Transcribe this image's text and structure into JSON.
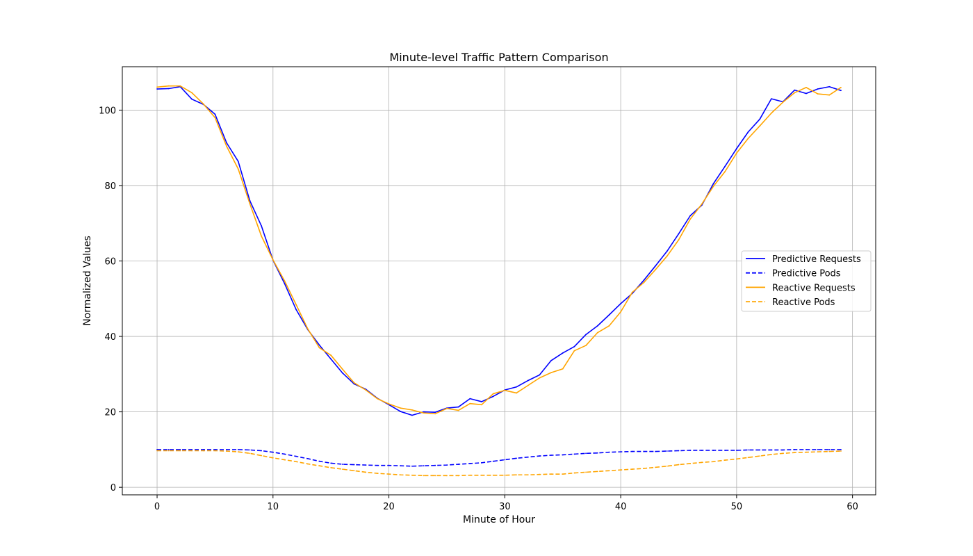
{
  "chart_data": {
    "type": "line",
    "title": "Minute-level Traffic Pattern Comparison",
    "xlabel": "Minute of Hour",
    "ylabel": "Normalized Values",
    "xlim": [
      -3,
      62
    ],
    "ylim": [
      -2,
      111.5
    ],
    "x_ticks": [
      0,
      10,
      20,
      30,
      40,
      50,
      60
    ],
    "y_ticks": [
      0,
      20,
      40,
      60,
      80,
      100
    ],
    "grid": true,
    "legend_position": "center-right",
    "x": [
      0,
      1,
      2,
      3,
      4,
      5,
      6,
      7,
      8,
      9,
      10,
      11,
      12,
      13,
      14,
      15,
      16,
      17,
      18,
      19,
      20,
      21,
      22,
      23,
      24,
      25,
      26,
      27,
      28,
      29,
      30,
      31,
      32,
      33,
      34,
      35,
      36,
      37,
      38,
      39,
      40,
      41,
      42,
      43,
      44,
      45,
      46,
      47,
      48,
      49,
      50,
      51,
      52,
      53,
      54,
      55,
      56,
      57,
      58,
      59
    ],
    "series": [
      {
        "name": "Predictive Requests",
        "color": "#0000ff",
        "dash": "solid",
        "values": [
          105.6,
          105.7,
          106.2,
          102.9,
          101.5,
          98.9,
          91.3,
          86.4,
          76.0,
          69.3,
          60.2,
          54.0,
          47.1,
          41.8,
          37.7,
          34.0,
          30.3,
          27.4,
          26.0,
          23.6,
          21.9,
          20.1,
          19.1,
          20.0,
          19.9,
          21.0,
          21.3,
          23.5,
          22.7,
          24.1,
          25.8,
          26.6,
          28.3,
          29.8,
          33.6,
          35.6,
          37.3,
          40.5,
          42.8,
          45.7,
          48.7,
          51.4,
          54.9,
          58.7,
          62.6,
          67.2,
          72.0,
          74.8,
          80.5,
          85.1,
          89.8,
          94.2,
          97.6,
          103.0,
          102.2,
          105.3,
          104.4,
          105.6,
          106.2,
          105.2
        ]
      },
      {
        "name": "Predictive Pods",
        "color": "#0000ff",
        "dash": "dashed",
        "values": [
          10.0,
          10.0,
          10.0,
          10.0,
          10.0,
          10.0,
          10.0,
          10.0,
          9.9,
          9.7,
          9.3,
          8.8,
          8.2,
          7.6,
          6.9,
          6.4,
          6.1,
          6.0,
          5.9,
          5.8,
          5.8,
          5.7,
          5.6,
          5.7,
          5.8,
          5.9,
          6.1,
          6.3,
          6.5,
          6.9,
          7.3,
          7.7,
          8.0,
          8.3,
          8.5,
          8.6,
          8.8,
          9.0,
          9.1,
          9.3,
          9.4,
          9.5,
          9.5,
          9.5,
          9.6,
          9.7,
          9.8,
          9.8,
          9.8,
          9.8,
          9.8,
          9.9,
          9.9,
          9.9,
          9.9,
          10.0,
          10.0,
          10.0,
          10.0,
          10.0
        ]
      },
      {
        "name": "Reactive Requests",
        "color": "#ffa500",
        "dash": "solid",
        "values": [
          106.1,
          106.4,
          106.4,
          104.6,
          101.6,
          98.0,
          90.4,
          84.4,
          75.2,
          66.6,
          60.3,
          54.7,
          48.4,
          42.0,
          37.0,
          35.0,
          31.3,
          27.7,
          25.8,
          23.5,
          22.1,
          21.0,
          20.5,
          19.7,
          19.5,
          20.9,
          20.4,
          22.2,
          21.9,
          24.8,
          25.7,
          25.0,
          27.0,
          29.0,
          30.4,
          31.4,
          36.2,
          37.6,
          41.0,
          42.8,
          46.5,
          51.7,
          54.3,
          57.7,
          61.3,
          65.6,
          71.1,
          75.1,
          79.8,
          83.7,
          88.6,
          92.5,
          95.8,
          99.2,
          102.1,
          104.6,
          106.0,
          104.3,
          104.0,
          106.0
        ]
      },
      {
        "name": "Reactive Pods",
        "color": "#ffa500",
        "dash": "dashed",
        "values": [
          9.7,
          9.7,
          9.7,
          9.7,
          9.7,
          9.7,
          9.6,
          9.4,
          9.0,
          8.4,
          7.8,
          7.3,
          6.8,
          6.2,
          5.7,
          5.2,
          4.8,
          4.4,
          4.0,
          3.7,
          3.5,
          3.3,
          3.2,
          3.1,
          3.1,
          3.1,
          3.1,
          3.2,
          3.2,
          3.2,
          3.2,
          3.3,
          3.3,
          3.4,
          3.5,
          3.5,
          3.8,
          4.0,
          4.2,
          4.4,
          4.6,
          4.8,
          5.0,
          5.3,
          5.6,
          6.0,
          6.3,
          6.6,
          6.8,
          7.2,
          7.5,
          7.9,
          8.3,
          8.7,
          9.0,
          9.2,
          9.3,
          9.4,
          9.5,
          9.6
        ]
      }
    ]
  }
}
